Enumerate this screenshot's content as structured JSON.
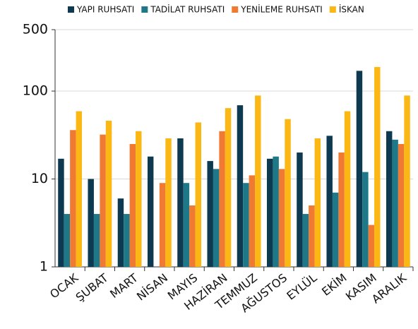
{
  "chart_data": {
    "type": "bar",
    "log_scale": true,
    "grid": true,
    "legend": "top",
    "categories": [
      "OCAK",
      "ŞUBAT",
      "MART",
      "NİSAN",
      "MAYIS",
      "HAZİRAN",
      "TEMMUZ",
      "AĞUSTOS",
      "EYLÜL",
      "EKİM",
      "KASIM",
      "ARALIK"
    ],
    "series": [
      {
        "name": "YAPI RUHSATI",
        "color": "#0d3a50",
        "values": [
          17,
          10,
          6,
          18,
          29,
          16,
          69,
          17,
          20,
          31,
          170,
          35
        ]
      },
      {
        "name": "TADİLAT RUHSATI",
        "color": "#1f7888",
        "values": [
          4,
          4,
          4,
          null,
          9,
          13,
          9,
          18,
          4,
          7,
          12,
          28
        ]
      },
      {
        "name": "YENİLEME RUHSATI",
        "color": "#f07a32",
        "values": [
          36,
          32,
          25,
          9,
          5,
          35,
          11,
          13,
          5,
          20,
          3,
          25
        ]
      },
      {
        "name": "İSKAN",
        "color": "#fbb714",
        "values": [
          59,
          46,
          35,
          29,
          44,
          64,
          89,
          48,
          29,
          59,
          188,
          89
        ]
      }
    ],
    "ylim": [
      1,
      500
    ],
    "yticks": [
      1,
      10,
      100,
      500
    ]
  }
}
